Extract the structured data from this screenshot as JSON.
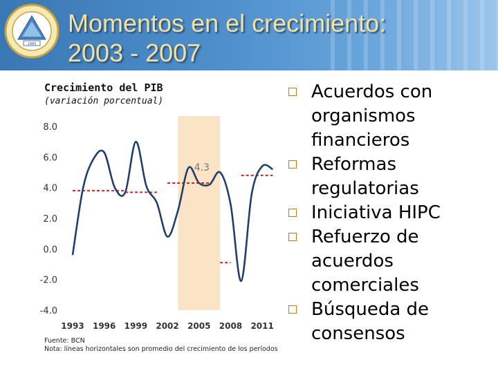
{
  "slide": {
    "title_line1": "Momentos en el crecimiento:",
    "title_line2": "2003 - 2007"
  },
  "bullets": [
    "Acuerdos con organismos financieros",
    "Reformas regulatorias",
    "Iniciativa HIPC",
    "Refuerzo de acuerdos comerciales",
    "Búsqueda de consensos"
  ],
  "notes": {
    "source": "Fuente: BCN",
    "note": "Nota: líneas horizontales son promedio del crecimiento de los períodos"
  },
  "colors": {
    "line": "#1f3f6e",
    "average": "#d62020",
    "highlight": "#fbe3c6",
    "bullet": "#c07a1a"
  },
  "chart_data": {
    "type": "line",
    "title": "Crecimiento del PIB",
    "subtitle": "(variación porcentual)",
    "xlabel": "",
    "ylabel": "",
    "ylim": [
      -4.0,
      8.0
    ],
    "xlim": [
      1993,
      2012.5
    ],
    "yticks": [
      "8.0",
      "6.0",
      "4.0",
      "2.0",
      "0.0",
      "-2.0",
      "-4.0"
    ],
    "xticks": [
      "1993",
      "1996",
      "1999",
      "2002",
      "2005",
      "2008",
      "2011"
    ],
    "highlight_period": [
      2003,
      2007
    ],
    "annotation": {
      "text": "4.3",
      "x": 2005,
      "y": 4.3
    },
    "series": [
      {
        "x": [
          1993,
          1994,
          1995,
          1996,
          1997,
          1998,
          1999,
          2000,
          2001,
          2002,
          2003,
          2004,
          2005,
          2006,
          2007,
          2008,
          2009,
          2010,
          2011,
          2012
        ],
        "y": [
          -0.4,
          4.0,
          5.9,
          6.3,
          4.0,
          3.7,
          7.0,
          4.1,
          3.0,
          0.8,
          2.5,
          5.3,
          4.3,
          4.2,
          5.0,
          2.9,
          -2.1,
          3.6,
          5.4,
          5.2
        ]
      }
    ],
    "averages": [
      {
        "x": [
          1993,
          1998
        ],
        "y": 3.8
      },
      {
        "x": [
          1998,
          2001
        ],
        "y": 3.7
      },
      {
        "x": [
          2002,
          2006
        ],
        "y": 4.3
      },
      {
        "x": [
          2007,
          2008
        ],
        "y": -0.9
      },
      {
        "x": [
          2009,
          2012
        ],
        "y": 4.8
      }
    ]
  }
}
